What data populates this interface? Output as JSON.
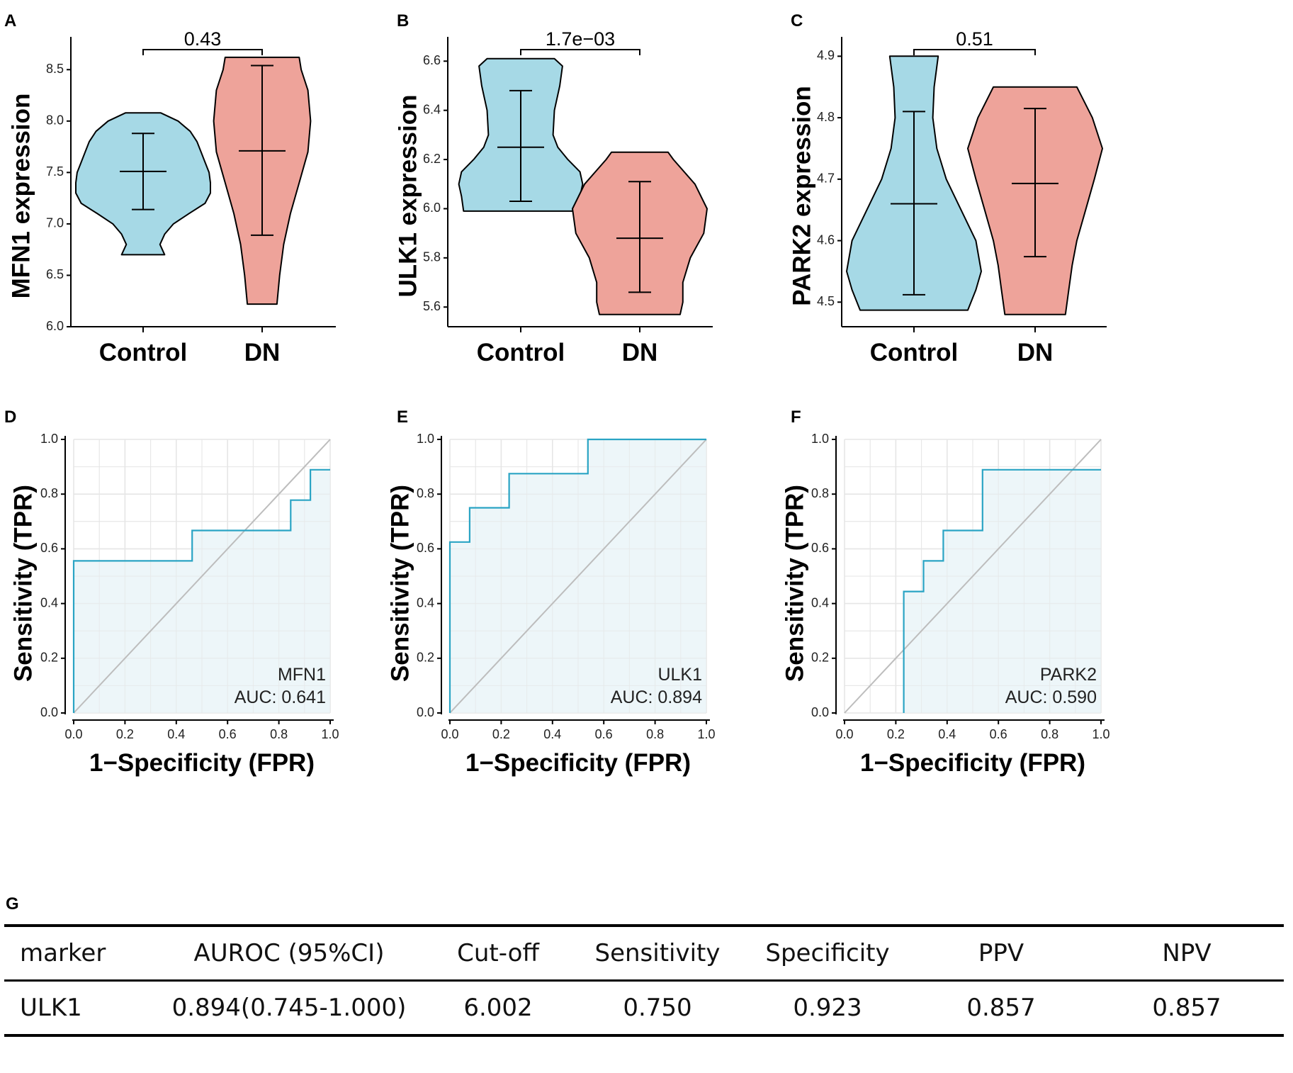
{
  "colors": {
    "control": "#a6d9e6",
    "dn": "#eea39a",
    "roc_line": "#2aa4c4",
    "roc_fill": "#eaf4f8",
    "diag": "#bdbdbd",
    "grid": "#e6e6e6"
  },
  "violins": [
    {
      "label": "A",
      "ylabel": "MFN1 expression",
      "ylim": [
        6.0,
        8.75
      ],
      "ticks": [
        "6.0",
        "6.5",
        "7.0",
        "7.5",
        "8.0",
        "8.5"
      ],
      "pvalue": "0.43",
      "groups": [
        {
          "name": "Control",
          "min": 6.7,
          "max": 8.08,
          "mean": 7.51,
          "lower": 7.14,
          "upper": 7.88,
          "profile": [
            [
              6.7,
              0.32
            ],
            [
              6.8,
              0.25
            ],
            [
              6.9,
              0.32
            ],
            [
              7.0,
              0.45
            ],
            [
              7.1,
              0.68
            ],
            [
              7.2,
              0.92
            ],
            [
              7.3,
              1.0
            ],
            [
              7.4,
              1.0
            ],
            [
              7.5,
              0.98
            ],
            [
              7.6,
              0.92
            ],
            [
              7.7,
              0.86
            ],
            [
              7.8,
              0.8
            ],
            [
              7.9,
              0.7
            ],
            [
              8.0,
              0.52
            ],
            [
              8.08,
              0.26
            ]
          ]
        },
        {
          "name": "DN",
          "min": 6.22,
          "max": 8.62,
          "mean": 7.71,
          "lower": 6.89,
          "upper": 8.54,
          "profile": [
            [
              6.22,
              0.22
            ],
            [
              6.5,
              0.26
            ],
            [
              6.8,
              0.32
            ],
            [
              7.1,
              0.42
            ],
            [
              7.4,
              0.55
            ],
            [
              7.7,
              0.68
            ],
            [
              8.0,
              0.72
            ],
            [
              8.3,
              0.68
            ],
            [
              8.5,
              0.58
            ],
            [
              8.62,
              0.55
            ]
          ]
        }
      ]
    },
    {
      "label": "B",
      "ylabel": "ULK1 expression",
      "ylim": [
        5.52,
        6.67
      ],
      "ticks": [
        "5.6",
        "5.8",
        "6.0",
        "6.2",
        "6.4",
        "6.6"
      ],
      "pvalue": "1.7e−03",
      "groups": [
        {
          "name": "Control",
          "min": 5.99,
          "max": 6.61,
          "mean": 6.25,
          "lower": 6.03,
          "upper": 6.48,
          "profile": [
            [
              5.99,
              0.85
            ],
            [
              6.05,
              0.88
            ],
            [
              6.1,
              0.92
            ],
            [
              6.15,
              0.88
            ],
            [
              6.2,
              0.7
            ],
            [
              6.25,
              0.55
            ],
            [
              6.3,
              0.48
            ],
            [
              6.4,
              0.5
            ],
            [
              6.5,
              0.58
            ],
            [
              6.58,
              0.62
            ],
            [
              6.61,
              0.5
            ]
          ]
        },
        {
          "name": "DN",
          "min": 5.57,
          "max": 6.23,
          "mean": 5.88,
          "lower": 5.66,
          "upper": 6.11,
          "profile": [
            [
              5.57,
              0.6
            ],
            [
              5.62,
              0.64
            ],
            [
              5.7,
              0.64
            ],
            [
              5.8,
              0.75
            ],
            [
              5.9,
              0.95
            ],
            [
              6.0,
              1.0
            ],
            [
              6.1,
              0.82
            ],
            [
              6.2,
              0.5
            ],
            [
              6.23,
              0.42
            ]
          ]
        }
      ]
    },
    {
      "label": "C",
      "ylabel": "PARK2 expression",
      "ylim": [
        4.46,
        4.92
      ],
      "ticks": [
        "4.5",
        "4.6",
        "4.7",
        "4.8",
        "4.9"
      ],
      "pvalue": "0.51",
      "groups": [
        {
          "name": "Control",
          "min": 4.487,
          "max": 4.9,
          "mean": 4.66,
          "lower": 4.512,
          "upper": 4.81,
          "profile": [
            [
              4.487,
              0.8
            ],
            [
              4.52,
              0.92
            ],
            [
              4.55,
              1.0
            ],
            [
              4.6,
              0.92
            ],
            [
              4.65,
              0.7
            ],
            [
              4.7,
              0.48
            ],
            [
              4.75,
              0.34
            ],
            [
              4.8,
              0.28
            ],
            [
              4.85,
              0.3
            ],
            [
              4.9,
              0.36
            ]
          ]
        },
        {
          "name": "DN",
          "min": 4.48,
          "max": 4.85,
          "mean": 4.693,
          "lower": 4.574,
          "upper": 4.815,
          "profile": [
            [
              4.48,
              0.45
            ],
            [
              4.52,
              0.5
            ],
            [
              4.56,
              0.55
            ],
            [
              4.6,
              0.62
            ],
            [
              4.65,
              0.75
            ],
            [
              4.7,
              0.88
            ],
            [
              4.75,
              1.0
            ],
            [
              4.8,
              0.85
            ],
            [
              4.85,
              0.62
            ]
          ]
        }
      ]
    }
  ],
  "rocs": [
    {
      "label": "D",
      "marker": "MFN1",
      "auc": "AUC: 0.641",
      "fpr": [
        0.0,
        0.0,
        0.462,
        0.462,
        0.846,
        0.846,
        0.923,
        0.923,
        1.0
      ],
      "tpr": [
        0.0,
        0.556,
        0.556,
        0.667,
        0.667,
        0.778,
        0.778,
        0.889,
        0.889
      ]
    },
    {
      "label": "E",
      "marker": "ULK1",
      "auc": "AUC: 0.894",
      "fpr": [
        0.0,
        0.0,
        0.077,
        0.077,
        0.231,
        0.231,
        0.538,
        0.538,
        1.0
      ],
      "tpr": [
        0.0,
        0.625,
        0.625,
        0.75,
        0.75,
        0.875,
        0.875,
        1.0,
        1.0
      ]
    },
    {
      "label": "F",
      "marker": "PARK2",
      "auc": "AUC: 0.590",
      "fpr": [
        0.231,
        0.231,
        0.308,
        0.308,
        0.385,
        0.385,
        0.538,
        0.538,
        1.0
      ],
      "tpr": [
        0.0,
        0.444,
        0.444,
        0.556,
        0.556,
        0.667,
        0.667,
        0.889,
        0.889
      ]
    }
  ],
  "roc_axes": {
    "xlabel": "1−Specificity (FPR)",
    "ylabel": "Sensitivity (TPR)",
    "ticks": [
      "0.0",
      "0.2",
      "0.4",
      "0.6",
      "0.8",
      "1.0"
    ]
  },
  "table": {
    "label": "G",
    "headers": [
      "marker",
      "AUROC (95%CI)",
      "Cut-off",
      "Sensitivity",
      "Specificity",
      "PPV",
      "NPV"
    ],
    "row": [
      "ULK1",
      "0.894(0.745-1.000)",
      "6.002",
      "0.750",
      "0.923",
      "0.857",
      "0.857"
    ]
  }
}
